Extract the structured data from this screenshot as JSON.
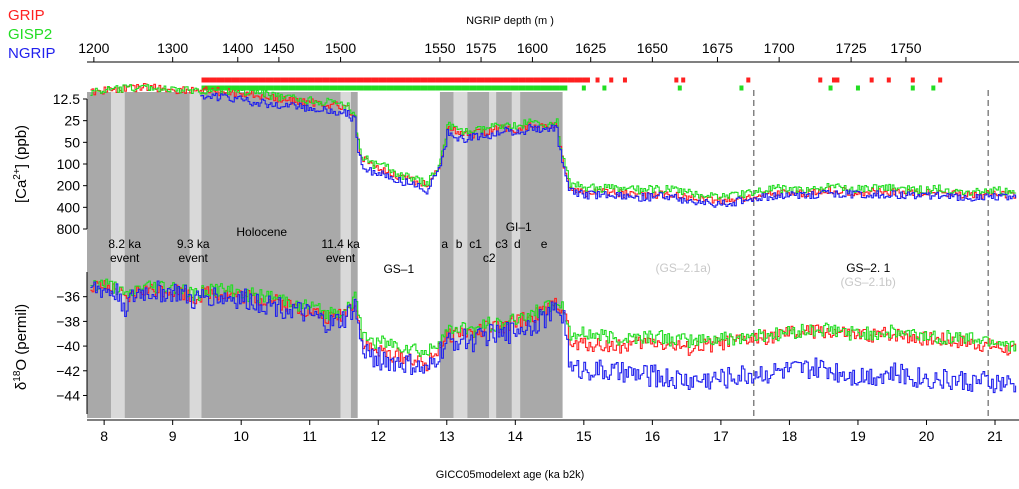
{
  "chart_data": {
    "type": "line",
    "legend": [
      {
        "name": "GRIP",
        "color": "#ff2020"
      },
      {
        "name": "GISP2",
        "color": "#22dd22"
      },
      {
        "name": "NGRIP",
        "color": "#2020ee"
      }
    ],
    "legend_placement": "top-left",
    "top_axis": {
      "label": "NGRIP depth (m )",
      "ticks": [
        {
          "label": "1200",
          "age": 7.85
        },
        {
          "label": "1300",
          "age": 9.0
        },
        {
          "label": "1400",
          "age": 9.95
        },
        {
          "label": "1450",
          "age": 10.55
        },
        {
          "label": "1500",
          "age": 11.45
        },
        {
          "label": "1550",
          "age": 12.9
        },
        {
          "label": "1575",
          "age": 13.5
        },
        {
          "label": "1600",
          "age": 14.25
        },
        {
          "label": "1625",
          "age": 15.1
        },
        {
          "label": "1650",
          "age": 16.0
        },
        {
          "label": "1675",
          "age": 16.95
        },
        {
          "label": "1700",
          "age": 17.85
        },
        {
          "label": "1725",
          "age": 18.9
        },
        {
          "label": "1750",
          "age": 19.7
        }
      ]
    },
    "x_axis": {
      "label": "GICC05modelext age (ka b2k)",
      "range": [
        7.75,
        21.35
      ],
      "ticks": [
        8,
        9,
        10,
        11,
        12,
        13,
        14,
        15,
        16,
        17,
        18,
        19,
        20,
        21
      ]
    },
    "ca_axis": {
      "label_main": "[Ca",
      "label_sup": "2+",
      "label_end": "] (ppb)",
      "scale": "log",
      "reversed": true,
      "ticks": [
        {
          "label": "12.5",
          "value": 12.5
        },
        {
          "label": "25",
          "value": 25
        },
        {
          "label": "50",
          "value": 50
        },
        {
          "label": "100",
          "value": 100
        },
        {
          "label": "200",
          "value": 200
        },
        {
          "label": "400",
          "value": 400
        },
        {
          "label": "800",
          "value": 800
        }
      ]
    },
    "d18o_axis": {
      "label_main": "δ",
      "label_sup": "18",
      "label_end": "O (permil)",
      "range": [
        -45.5,
        -34
      ],
      "ticks": [
        -36,
        -38,
        -40,
        -42,
        -44
      ]
    },
    "shaded_bands": [
      {
        "from": 7.75,
        "to": 8.1,
        "color": "#a9a9a9"
      },
      {
        "from": 8.1,
        "to": 8.3,
        "color": "#d9d9d9"
      },
      {
        "from": 8.3,
        "to": 9.25,
        "color": "#a9a9a9"
      },
      {
        "from": 9.25,
        "to": 9.42,
        "color": "#d9d9d9"
      },
      {
        "from": 9.42,
        "to": 11.45,
        "color": "#a9a9a9"
      },
      {
        "from": 11.45,
        "to": 11.6,
        "color": "#d9d9d9"
      },
      {
        "from": 11.6,
        "to": 11.7,
        "color": "#a9a9a9"
      },
      {
        "from": 12.9,
        "to": 13.1,
        "color": "#a9a9a9"
      },
      {
        "from": 13.1,
        "to": 13.3,
        "color": "#d9d9d9"
      },
      {
        "from": 13.3,
        "to": 13.62,
        "color": "#a9a9a9"
      },
      {
        "from": 13.62,
        "to": 13.72,
        "color": "#d9d9d9"
      },
      {
        "from": 13.72,
        "to": 13.95,
        "color": "#a9a9a9"
      },
      {
        "from": 13.95,
        "to": 14.07,
        "color": "#d9d9d9"
      },
      {
        "from": 14.07,
        "to": 14.69,
        "color": "#a9a9a9"
      }
    ],
    "dashed_lines": [
      17.48,
      20.9
    ],
    "annotations": [
      {
        "lines": [
          "8.2 ka",
          "event"
        ],
        "x": 8.3,
        "color": "#000000"
      },
      {
        "lines": [
          "9.3 ka",
          "event"
        ],
        "x": 9.3,
        "color": "#000000"
      },
      {
        "lines": [
          "Holocene"
        ],
        "x": 10.3,
        "color": "#000000"
      },
      {
        "lines": [
          "11.4 ka",
          "event"
        ],
        "x": 11.45,
        "color": "#000000"
      },
      {
        "lines": [
          "GS–1"
        ],
        "x": 12.3,
        "color": "#000000"
      },
      {
        "lines": [
          "GI–1"
        ],
        "x": 14.05,
        "color": "#000000"
      },
      {
        "lines": [
          "a"
        ],
        "x": 12.97,
        "color": "#000000"
      },
      {
        "lines": [
          "b"
        ],
        "x": 13.18,
        "color": "#000000"
      },
      {
        "lines": [
          "c1"
        ],
        "x": 13.42,
        "color": "#000000"
      },
      {
        "lines": [
          "c3"
        ],
        "x": 13.8,
        "color": "#000000"
      },
      {
        "lines": [
          "c2"
        ],
        "x": 13.62,
        "color": "#000000"
      },
      {
        "lines": [
          "d"
        ],
        "x": 14.03,
        "color": "#000000"
      },
      {
        "lines": [
          "e"
        ],
        "x": 14.42,
        "color": "#000000"
      },
      {
        "lines": [
          "(GS–2.1a)"
        ],
        "x": 16.45,
        "color": "#c8c8c8"
      },
      {
        "lines": [
          "GS–2. 1"
        ],
        "x": 19.15,
        "color": "#000000"
      },
      {
        "lines": [
          "(GS–2.1b)"
        ],
        "x": 19.15,
        "color": "#c8c8c8"
      }
    ],
    "series_ca": [
      {
        "name": "GRIP",
        "color": "#ff2020",
        "x": [
          7.8,
          8.0,
          8.3,
          8.6,
          9.0,
          9.4,
          9.8,
          10.2,
          10.6,
          11.0,
          11.3,
          11.55,
          11.65,
          11.75,
          11.9,
          12.1,
          12.3,
          12.5,
          12.7,
          12.85,
          13.0,
          13.2,
          13.4,
          13.6,
          13.8,
          14.0,
          14.2,
          14.4,
          14.6,
          14.7,
          14.8,
          15.0,
          15.4,
          15.8,
          16.2,
          16.6,
          17.0,
          17.4,
          17.8,
          18.2,
          18.6,
          19.0,
          19.4,
          19.8,
          20.2,
          20.6,
          21.0,
          21.3
        ],
        "y": [
          10,
          9.5,
          9,
          8.5,
          9.5,
          9.5,
          10,
          11,
          13,
          14,
          15,
          17,
          22,
          80,
          110,
          120,
          150,
          170,
          200,
          120,
          30,
          40,
          38,
          35,
          30,
          34,
          28,
          30,
          28,
          100,
          220,
          250,
          250,
          270,
          260,
          300,
          330,
          290,
          250,
          260,
          230,
          250,
          240,
          260,
          250,
          270,
          260,
          280
        ]
      },
      {
        "name": "GISP2",
        "color": "#22dd22",
        "x": [
          7.8,
          8.0,
          8.3,
          8.6,
          9.0,
          9.4,
          9.8,
          10.2,
          10.6,
          11.0,
          11.3,
          11.55,
          11.65,
          11.75,
          11.9,
          12.1,
          12.3,
          12.5,
          12.7,
          12.85,
          13.0,
          13.2,
          13.4,
          13.6,
          13.8,
          14.0,
          14.2,
          14.4,
          14.6,
          14.7,
          14.8,
          15.0,
          15.4,
          15.8,
          16.2,
          16.6,
          17.0,
          17.4,
          17.8,
          18.2,
          18.6,
          19.0,
          19.4,
          19.8,
          20.2,
          20.6,
          21.0,
          21.3
        ],
        "y": [
          10,
          9.5,
          9,
          8.5,
          9.5,
          9.5,
          9.5,
          10,
          12,
          13,
          14,
          16,
          20,
          75,
          100,
          110,
          140,
          160,
          190,
          110,
          28,
          36,
          35,
          32,
          28,
          30,
          26,
          28,
          26,
          90,
          190,
          210,
          220,
          230,
          220,
          260,
          280,
          250,
          220,
          230,
          210,
          220,
          210,
          230,
          220,
          240,
          230,
          250
        ]
      },
      {
        "name": "NGRIP",
        "color": "#2020ee",
        "x": [
          9.4,
          9.8,
          10.2,
          10.6,
          11.0,
          11.3,
          11.55,
          11.65,
          11.75,
          11.9,
          12.1,
          12.3,
          12.5,
          12.7,
          12.85,
          13.0,
          13.2,
          13.4,
          13.6,
          13.8,
          14.0,
          14.2,
          14.4,
          14.6,
          14.7,
          14.8,
          15.0,
          15.4,
          15.8,
          16.2,
          16.6,
          17.0,
          17.4,
          17.8,
          18.2,
          18.6,
          19.0,
          19.4,
          19.8,
          20.2,
          20.6,
          21.0,
          21.3
        ],
        "y": [
          11,
          12,
          14,
          15,
          17,
          18,
          20,
          25,
          100,
          130,
          140,
          170,
          190,
          230,
          130,
          35,
          45,
          42,
          40,
          34,
          38,
          32,
          34,
          32,
          110,
          240,
          270,
          270,
          290,
          280,
          330,
          360,
          310,
          270,
          280,
          250,
          270,
          260,
          280,
          270,
          290,
          280,
          300
        ]
      }
    ],
    "series_d18o": [
      {
        "name": "GRIP",
        "color": "#ff2020",
        "x": [
          7.8,
          8.0,
          8.2,
          8.3,
          8.5,
          8.8,
          9.1,
          9.3,
          9.5,
          9.8,
          10.1,
          10.4,
          10.7,
          11.0,
          11.3,
          11.5,
          11.65,
          11.75,
          11.9,
          12.1,
          12.3,
          12.5,
          12.7,
          12.9,
          13.0,
          13.2,
          13.4,
          13.6,
          13.8,
          14.0,
          14.2,
          14.4,
          14.6,
          14.7,
          14.8,
          15.0,
          15.5,
          16.0,
          16.5,
          17.0,
          17.5,
          18.0,
          18.5,
          19.0,
          19.5,
          20.0,
          20.5,
          21.0,
          21.3
        ],
        "y": [
          -35.2,
          -35.3,
          -35.6,
          -36.4,
          -35.5,
          -35.4,
          -35.5,
          -36.1,
          -35.6,
          -35.8,
          -36.0,
          -36.3,
          -36.7,
          -37.2,
          -37.8,
          -37.3,
          -36.3,
          -39.5,
          -40.3,
          -40.6,
          -40.8,
          -41.0,
          -41.6,
          -39.8,
          -39.2,
          -38.8,
          -39.0,
          -38.4,
          -38.6,
          -38.0,
          -37.7,
          -37.2,
          -36.5,
          -37.0,
          -40.0,
          -39.8,
          -40.0,
          -39.6,
          -40.2,
          -39.8,
          -39.4,
          -39.0,
          -38.8,
          -39.2,
          -39.0,
          -39.4,
          -39.6,
          -40.0,
          -40.4
        ]
      },
      {
        "name": "GISP2",
        "color": "#22dd22",
        "x": [
          7.8,
          8.0,
          8.2,
          8.3,
          8.5,
          8.8,
          9.1,
          9.3,
          9.5,
          9.8,
          10.1,
          10.4,
          10.7,
          11.0,
          11.3,
          11.5,
          11.65,
          11.75,
          11.9,
          12.1,
          12.3,
          12.5,
          12.7,
          12.9,
          13.0,
          13.2,
          13.4,
          13.6,
          13.8,
          14.0,
          14.2,
          14.4,
          14.6,
          14.7,
          14.8,
          15.0,
          15.5,
          16.0,
          16.5,
          17.0,
          17.5,
          18.0,
          18.5,
          19.0,
          19.5,
          20.0,
          20.5,
          21.0,
          21.3
        ],
        "y": [
          -35.0,
          -35.1,
          -35.4,
          -36.2,
          -35.3,
          -35.2,
          -35.3,
          -35.9,
          -35.4,
          -35.6,
          -35.8,
          -36.1,
          -36.4,
          -36.9,
          -37.4,
          -37.0,
          -36.2,
          -39.0,
          -39.6,
          -39.8,
          -40.0,
          -40.2,
          -40.7,
          -39.4,
          -38.9,
          -38.5,
          -38.7,
          -38.2,
          -38.3,
          -37.8,
          -37.5,
          -37.0,
          -36.3,
          -36.8,
          -39.2,
          -39.0,
          -39.4,
          -39.2,
          -39.6,
          -39.4,
          -39.2,
          -38.9,
          -38.7,
          -39.0,
          -38.9,
          -39.2,
          -39.3,
          -39.6,
          -39.9
        ]
      },
      {
        "name": "NGRIP",
        "color": "#2020ee",
        "x": [
          7.8,
          8.0,
          8.2,
          8.3,
          8.5,
          8.8,
          9.1,
          9.3,
          9.5,
          9.8,
          10.1,
          10.4,
          10.7,
          11.0,
          11.3,
          11.5,
          11.65,
          11.75,
          11.9,
          12.1,
          12.3,
          12.5,
          12.7,
          12.9,
          13.0,
          13.2,
          13.4,
          13.6,
          13.8,
          14.0,
          14.2,
          14.4,
          14.6,
          14.7,
          14.8,
          15.0,
          15.5,
          16.0,
          16.5,
          17.0,
          17.5,
          18.0,
          18.5,
          19.0,
          19.5,
          20.0,
          20.5,
          21.0,
          21.3
        ],
        "y": [
          -35.4,
          -35.5,
          -35.8,
          -36.8,
          -35.7,
          -35.6,
          -35.7,
          -36.4,
          -35.9,
          -36.1,
          -36.3,
          -36.6,
          -37.0,
          -37.6,
          -38.3,
          -37.8,
          -36.8,
          -40.2,
          -40.8,
          -41.2,
          -41.4,
          -41.6,
          -42.2,
          -40.4,
          -39.8,
          -39.4,
          -39.6,
          -39.0,
          -39.2,
          -38.6,
          -38.3,
          -37.8,
          -37.0,
          -37.6,
          -42.0,
          -41.8,
          -42.2,
          -42.4,
          -42.8,
          -42.6,
          -42.2,
          -42.0,
          -41.8,
          -42.4,
          -42.2,
          -42.6,
          -42.8,
          -43.0,
          -43.2
        ]
      }
    ],
    "marker_rows": [
      {
        "name": "GRIP",
        "color": "#ff2020",
        "from": 9.45,
        "to": 15.1,
        "sparse": [
          15.2,
          15.4,
          15.6,
          16.35,
          16.45,
          17.4,
          18.45,
          18.65,
          18.7,
          19.2,
          19.45,
          19.8,
          20.2
        ]
      },
      {
        "name": "GISP2",
        "color": "#22dd22",
        "from": 9.45,
        "to": 14.75,
        "sparse": [
          15.0,
          15.3,
          16.4,
          17.3,
          18.6,
          19.0,
          19.8,
          20.1
        ]
      }
    ]
  }
}
